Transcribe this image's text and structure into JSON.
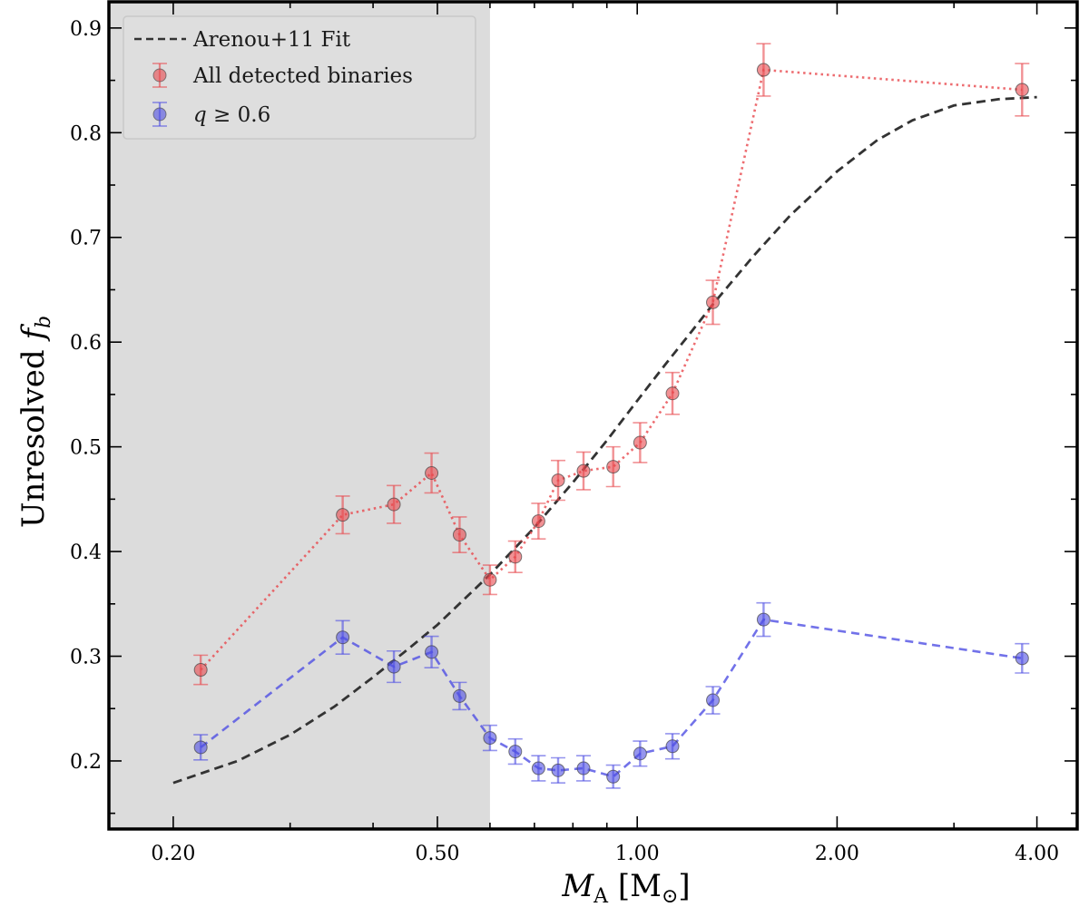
{
  "chart_data": {
    "type": "scatter",
    "xscale": "log",
    "xlim": [
      0.16,
      4.6
    ],
    "ylim": [
      0.135,
      0.925
    ],
    "xticks": [
      0.2,
      0.5,
      1.0,
      2.0,
      4.0
    ],
    "xtick_labels": [
      "0.20",
      "0.50",
      "1.00",
      "2.00",
      "4.00"
    ],
    "yticks": [
      0.2,
      0.3,
      0.4,
      0.5,
      0.6,
      0.7,
      0.8,
      0.9
    ],
    "ytick_labels": [
      "0.2",
      "0.3",
      "0.4",
      "0.5",
      "0.6",
      "0.7",
      "0.8",
      "0.9"
    ],
    "xlabel_main": "M",
    "xlabel_sub": "A",
    "xlabel_unit_open": "[M",
    "xlabel_unit_sym": "⊙",
    "xlabel_unit_close": "]",
    "ylabel_main": "Unresolved ",
    "ylabel_var": "f",
    "ylabel_sub": "b",
    "shaded_region": {
      "x_from": 0.16,
      "x_to": 0.6,
      "color": "#dcdcdc"
    },
    "legend": {
      "location": "top-left",
      "entries": [
        {
          "id": "fit",
          "label": "Arenou+11 Fit"
        },
        {
          "id": "all",
          "label": "All detected binaries"
        },
        {
          "id": "q",
          "label_var": "q",
          "label_rest": " ≥  0.6"
        }
      ]
    },
    "fit": {
      "name": "Arenou+11 Fit",
      "color": "#333333",
      "x": [
        0.2,
        0.25,
        0.3,
        0.35,
        0.4,
        0.45,
        0.5,
        0.6,
        0.7,
        0.8,
        0.9,
        1.0,
        1.1,
        1.2,
        1.3,
        1.5,
        1.7,
        2.0,
        2.3,
        2.6,
        3.0,
        3.5,
        4.0
      ],
      "y": [
        0.179,
        0.2,
        0.225,
        0.252,
        0.28,
        0.306,
        0.33,
        0.378,
        0.423,
        0.466,
        0.506,
        0.544,
        0.578,
        0.608,
        0.636,
        0.683,
        0.721,
        0.763,
        0.793,
        0.812,
        0.826,
        0.832,
        0.834
      ]
    },
    "series": [
      {
        "name": "All detected binaries",
        "color": "#e8474c",
        "line_style": "dotted",
        "x": [
          0.22,
          0.36,
          0.43,
          0.49,
          0.54,
          0.6,
          0.655,
          0.71,
          0.76,
          0.83,
          0.92,
          1.01,
          1.13,
          1.3,
          1.55,
          3.8
        ],
        "y": [
          0.287,
          0.435,
          0.445,
          0.475,
          0.416,
          0.373,
          0.395,
          0.429,
          0.468,
          0.477,
          0.481,
          0.504,
          0.551,
          0.638,
          0.86,
          0.841
        ],
        "err": [
          0.014,
          0.018,
          0.018,
          0.019,
          0.017,
          0.014,
          0.015,
          0.017,
          0.019,
          0.018,
          0.019,
          0.019,
          0.02,
          0.021,
          0.025,
          0.025
        ]
      },
      {
        "name": "q ≥ 0.6",
        "color": "#4f4fe3",
        "line_style": "dashed",
        "x": [
          0.22,
          0.36,
          0.43,
          0.49,
          0.54,
          0.6,
          0.655,
          0.71,
          0.76,
          0.83,
          0.92,
          1.01,
          1.13,
          1.3,
          1.55,
          3.8
        ],
        "y": [
          0.213,
          0.318,
          0.29,
          0.304,
          0.262,
          0.222,
          0.209,
          0.193,
          0.191,
          0.193,
          0.185,
          0.207,
          0.214,
          0.258,
          0.335,
          0.298
        ],
        "err": [
          0.012,
          0.016,
          0.015,
          0.015,
          0.013,
          0.012,
          0.012,
          0.012,
          0.012,
          0.012,
          0.011,
          0.012,
          0.012,
          0.013,
          0.016,
          0.014
        ]
      }
    ]
  }
}
